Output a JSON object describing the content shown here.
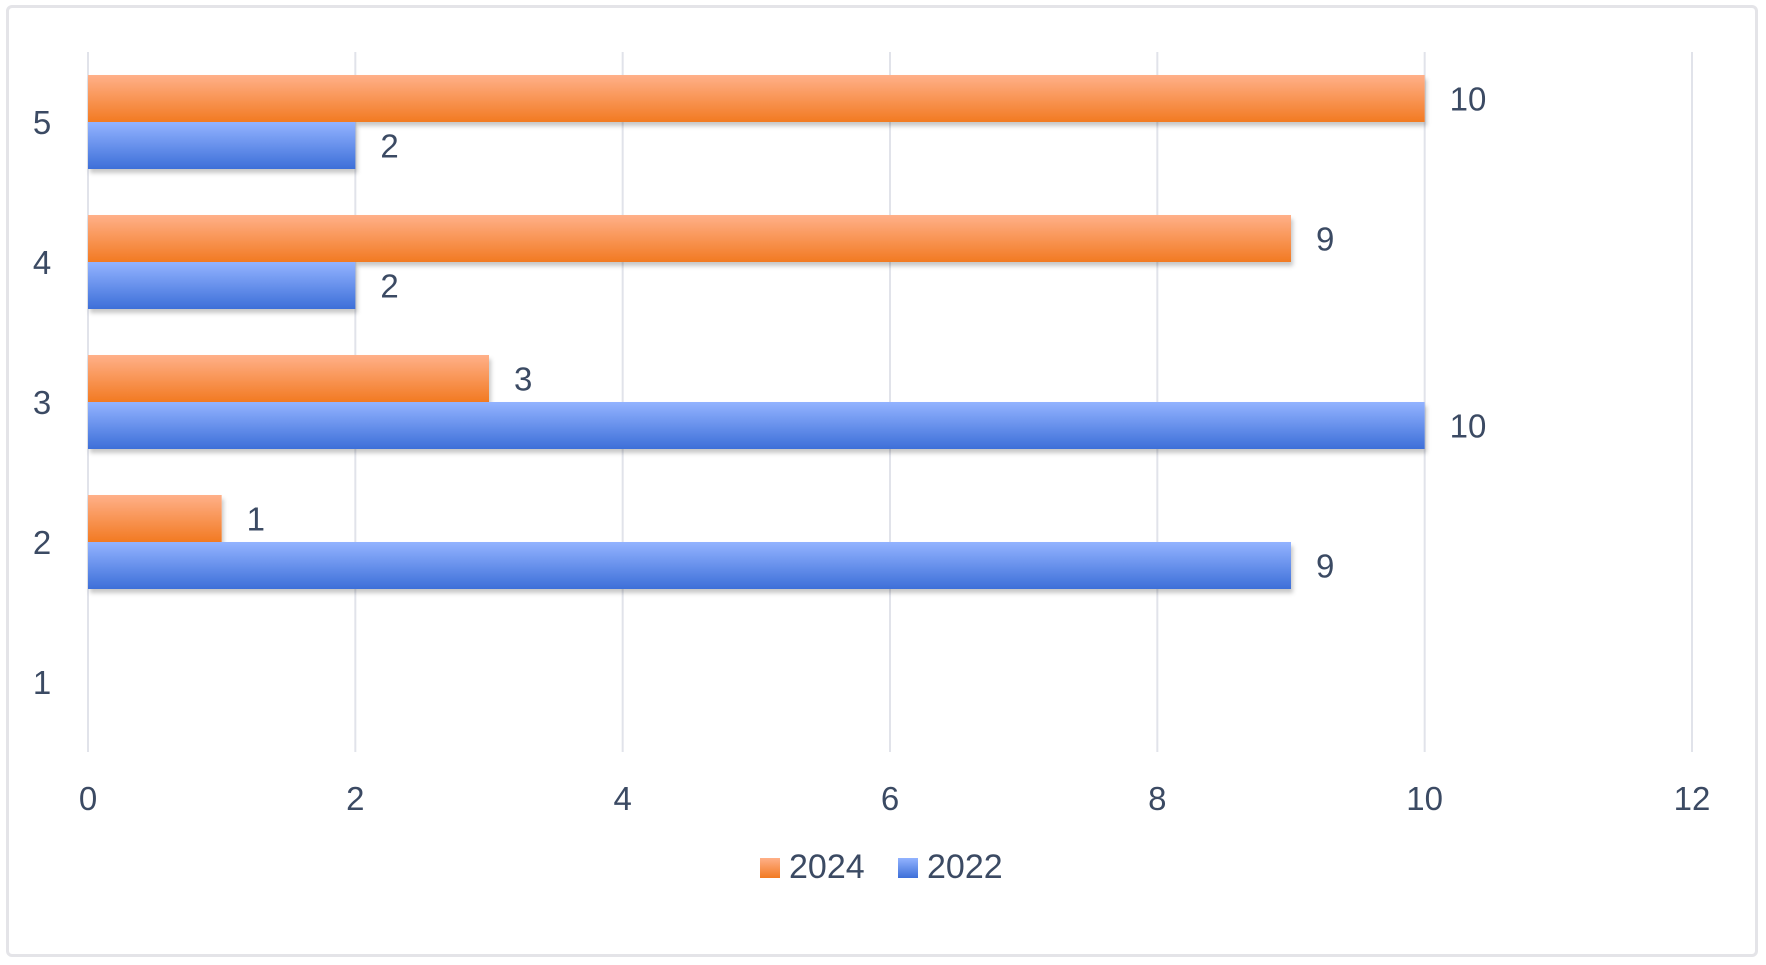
{
  "chart_data": {
    "type": "bar",
    "orientation": "horizontal",
    "categories": [
      "1",
      "2",
      "3",
      "4",
      "5"
    ],
    "series": [
      {
        "name": "2022",
        "values": [
          null,
          9,
          10,
          2,
          2
        ],
        "color": "#5b84e8"
      },
      {
        "name": "2024",
        "values": [
          null,
          1,
          3,
          9,
          10
        ],
        "color": "#f5823a"
      }
    ],
    "xlim": [
      0,
      12
    ],
    "xticks": [
      0,
      2,
      4,
      6,
      8,
      10,
      12
    ],
    "grid": true,
    "data_labels": true,
    "legend": {
      "position": "bottom",
      "order": [
        "2024",
        "2022"
      ]
    },
    "title": "",
    "xlabel": "",
    "ylabel": ""
  }
}
